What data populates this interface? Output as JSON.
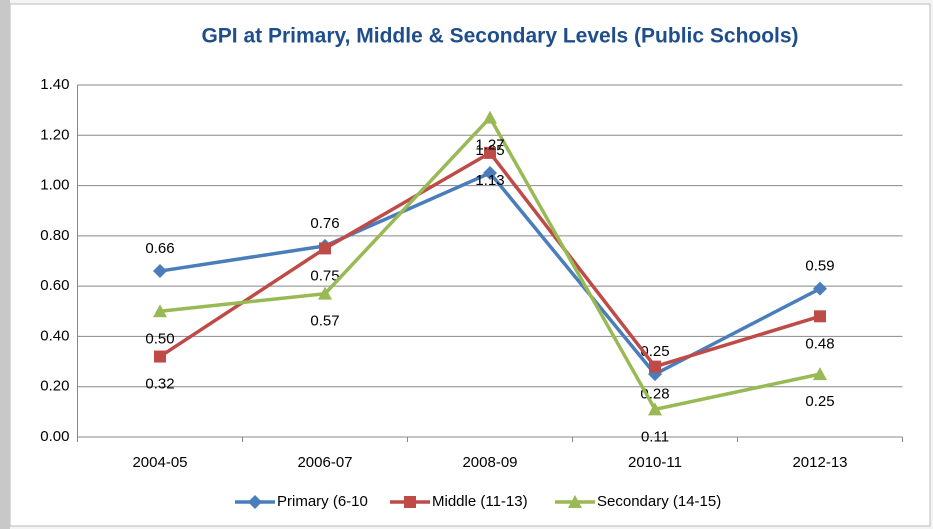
{
  "chart_data": {
    "type": "line",
    "title": "GPI at Primary, Middle & Secondary Levels (Public Schools)",
    "categories": [
      "2004-05",
      "2006-07",
      "2008-09",
      "2010-11",
      "2012-13"
    ],
    "series": [
      {
        "name": "Primary (6-10",
        "color": "#4a7ebb",
        "marker": "diamond",
        "values": [
          0.66,
          0.76,
          1.05,
          0.25,
          0.59
        ],
        "value_labels": [
          "0.66",
          "0.76",
          "1.05",
          "0.25",
          "0.59"
        ]
      },
      {
        "name": "Middle (11-13)",
        "color": "#be4b48",
        "marker": "square",
        "values": [
          0.32,
          0.75,
          1.13,
          0.28,
          0.48
        ],
        "value_labels": [
          "0.32",
          "0.75",
          "1.13",
          "0.28",
          "0.48"
        ]
      },
      {
        "name": "Secondary (14-15)",
        "color": "#98b954",
        "marker": "triangle",
        "values": [
          0.5,
          0.57,
          1.27,
          0.11,
          0.25
        ],
        "value_labels": [
          "0.50",
          "0.57",
          "1.27",
          "0.11",
          "0.25"
        ]
      }
    ],
    "ylim": [
      0,
      1.4
    ],
    "yticks": [
      {
        "value": 0,
        "label": "0.00"
      },
      {
        "value": 0.2,
        "label": "0.20"
      },
      {
        "value": 0.4,
        "label": "0.40"
      },
      {
        "value": 0.6,
        "label": "0.60"
      },
      {
        "value": 0.8,
        "label": "0.80"
      },
      {
        "value": 1.0,
        "label": "1.00"
      },
      {
        "value": 1.2,
        "label": "1.20"
      },
      {
        "value": 1.4,
        "label": "1.40"
      }
    ],
    "grid": true,
    "legend": "bottom"
  }
}
